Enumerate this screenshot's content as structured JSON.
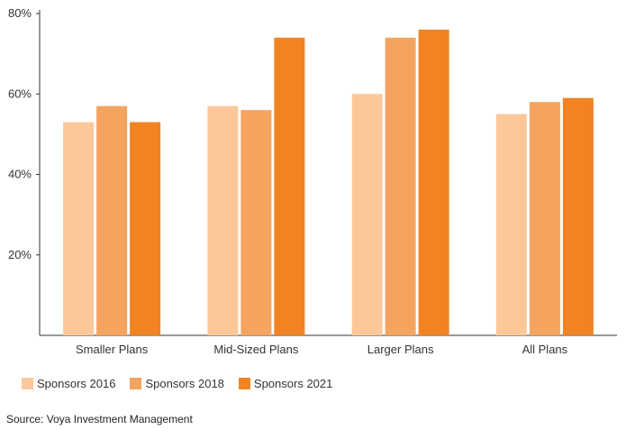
{
  "chart_data": {
    "type": "bar",
    "categories": [
      "Smaller Plans",
      "Mid-Sized Plans",
      "Larger Plans",
      "All Plans"
    ],
    "series": [
      {
        "name": "Sponsors 2016",
        "color": "#fcc89a",
        "values": [
          53,
          57,
          60,
          55
        ]
      },
      {
        "name": "Sponsors 2018",
        "color": "#f5a45f",
        "values": [
          57,
          56,
          74,
          58
        ]
      },
      {
        "name": "Sponsors 2021",
        "color": "#f28322",
        "values": [
          53,
          74,
          76,
          59
        ]
      }
    ],
    "ylim": [
      0,
      80
    ],
    "yticks": [
      20,
      40,
      60,
      80
    ],
    "ytick_labels": [
      "20%",
      "40%",
      "60%",
      "80%"
    ],
    "legend_position": "bottom-left"
  },
  "source": "Source: Voya Investment Management"
}
